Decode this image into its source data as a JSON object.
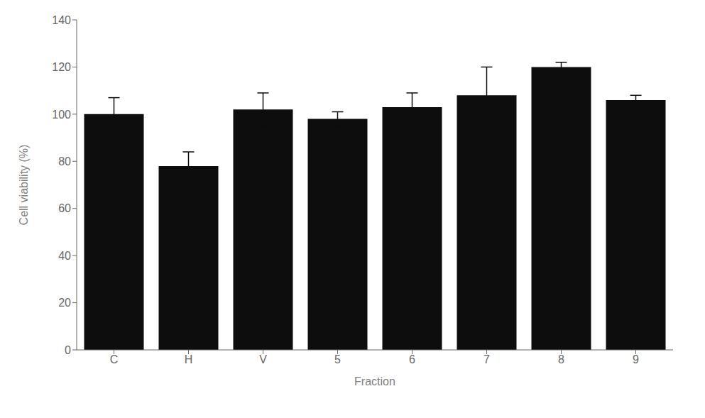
{
  "chart_data": {
    "type": "bar",
    "categories": [
      "C",
      "H",
      "V",
      "5",
      "6",
      "7",
      "8",
      "9"
    ],
    "values": [
      100,
      78,
      102,
      98,
      103,
      108,
      120,
      106
    ],
    "errors": [
      7,
      6,
      7,
      3,
      6,
      12,
      2,
      2
    ],
    "color": "#0d0d0d",
    "xlabel": "Fraction",
    "ylabel": "Cell viability (%)",
    "ylim": [
      0,
      140
    ],
    "yticks": [
      0,
      20,
      40,
      60,
      80,
      100,
      120,
      140
    ],
    "grid": false
  }
}
